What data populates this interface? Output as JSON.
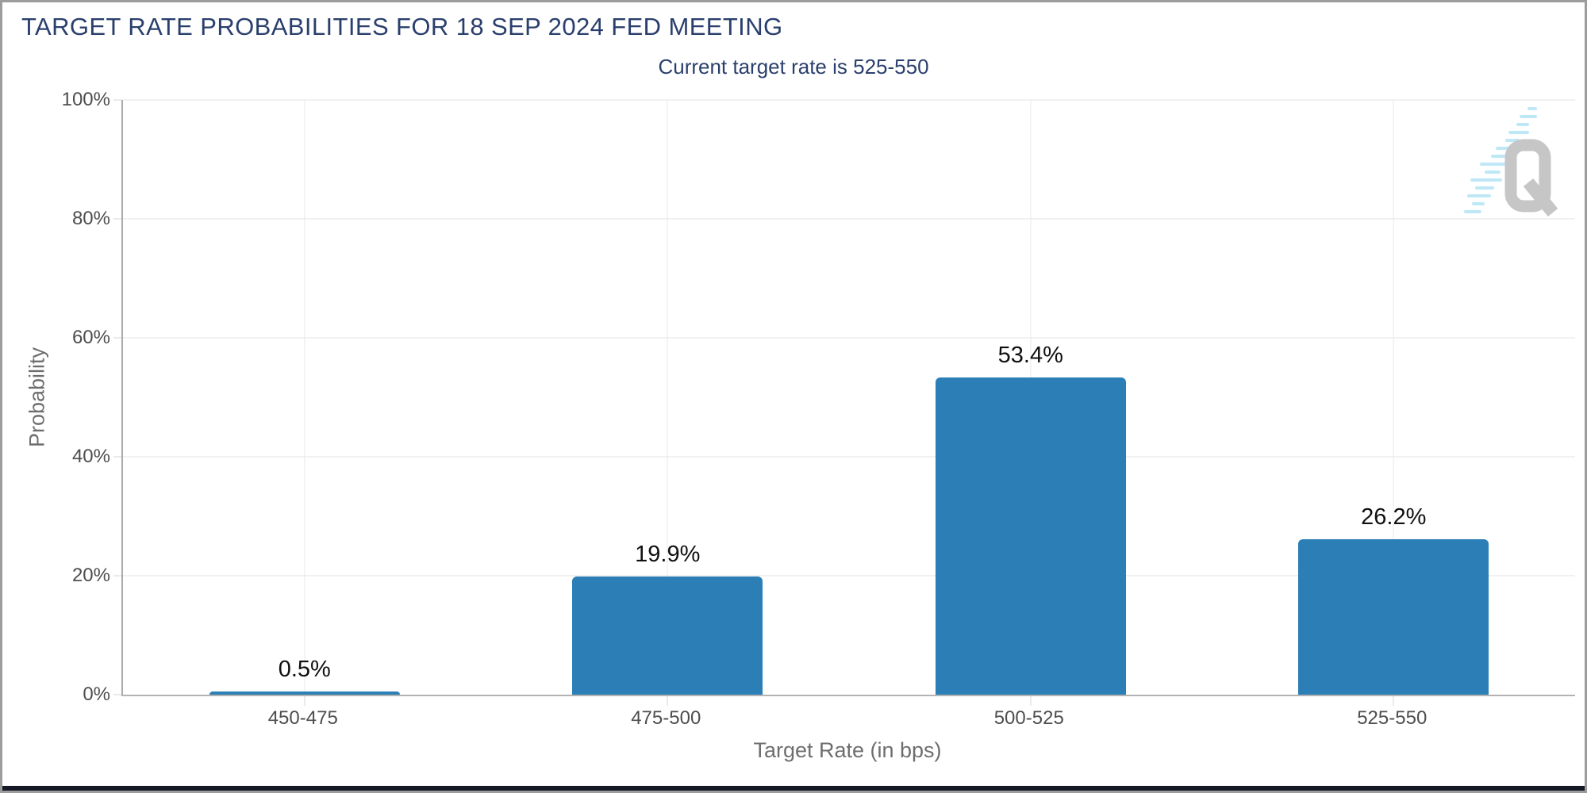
{
  "header": {
    "title": "TARGET RATE PROBABILITIES FOR 18 SEP 2024 FED MEETING",
    "subtitle": "Current target rate is 525-550"
  },
  "chart_data": {
    "type": "bar",
    "title": "TARGET RATE PROBABILITIES FOR 18 SEP 2024 FED MEETING",
    "subtitle": "Current target rate is 525-550",
    "categories": [
      "450-475",
      "475-500",
      "500-525",
      "525-550"
    ],
    "values": [
      0.5,
      19.9,
      53.4,
      26.2
    ],
    "value_labels": [
      "0.5%",
      "19.9%",
      "53.4%",
      "26.2%"
    ],
    "xlabel": "Target Rate (in bps)",
    "ylabel": "Probability",
    "ylim": [
      0,
      100
    ],
    "yticks": [
      0,
      20,
      40,
      60,
      80,
      100
    ],
    "ytick_labels": [
      "0%",
      "20%",
      "40%",
      "60%",
      "80%",
      "100%"
    ],
    "grid": true,
    "legend": false
  },
  "logo": {
    "icon": "q-logo",
    "letter": "Q"
  },
  "colors": {
    "bar": "#2c7fb6",
    "title_navy": "#2a3f6d",
    "grid": "#e3e3e3",
    "axis": "#b3b3b3",
    "tick_text": "#4e4e4e",
    "axis_title_text": "#6e6e6e",
    "logo_gray": "#c6c6c6",
    "logo_streak": "#bfe8f7",
    "bottom_strip": "#141925",
    "frame_border": "#9c9c9c"
  }
}
